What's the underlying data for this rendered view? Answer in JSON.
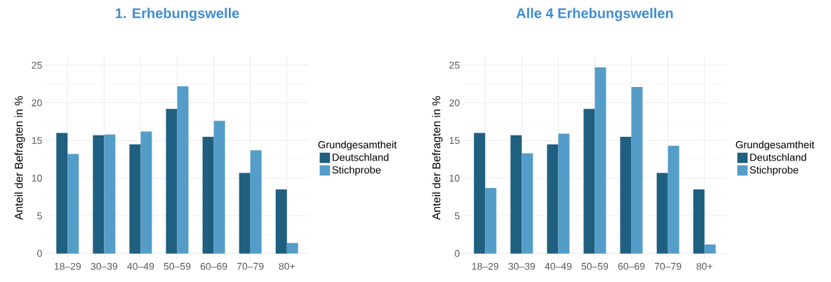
{
  "chart_data": [
    {
      "type": "bar",
      "title": "1. Erhebungswelle",
      "ylabel": "Anteil der Befragten in %",
      "legend_title": "Grundgesamtheit",
      "legend": "right",
      "grid": true,
      "categories": [
        "18–29",
        "30–39",
        "40–49",
        "50–59",
        "60–69",
        "70–79",
        "80+"
      ],
      "series": [
        {
          "name": "Deutschland",
          "color": "#1f5f7f",
          "values": [
            16.0,
            15.7,
            14.5,
            19.2,
            15.5,
            10.7,
            8.5
          ]
        },
        {
          "name": "Stichprobe",
          "color": "#559dc9",
          "values": [
            13.2,
            15.8,
            16.2,
            22.2,
            17.6,
            13.7,
            1.4
          ]
        }
      ],
      "ylim": [
        -0.8,
        26.2
      ],
      "yticks": [
        0,
        5,
        10,
        15,
        20,
        25
      ]
    },
    {
      "type": "bar",
      "title": "Alle 4 Erhebungswellen",
      "ylabel": "Anteil der Befragten in %",
      "legend_title": "Grundgesamtheit",
      "legend": "right",
      "grid": true,
      "categories": [
        "18–29",
        "30–39",
        "40–49",
        "50–59",
        "60–69",
        "70–79",
        "80+"
      ],
      "series": [
        {
          "name": "Deutschland",
          "color": "#1f5f7f",
          "values": [
            16.0,
            15.7,
            14.5,
            19.2,
            15.5,
            10.7,
            8.5
          ]
        },
        {
          "name": "Stichprobe",
          "color": "#559dc9",
          "values": [
            8.7,
            13.3,
            15.9,
            24.7,
            22.1,
            14.3,
            1.2
          ]
        }
      ],
      "ylim": [
        -0.8,
        26.2
      ],
      "yticks": [
        0,
        5,
        10,
        15,
        20,
        25
      ]
    }
  ]
}
